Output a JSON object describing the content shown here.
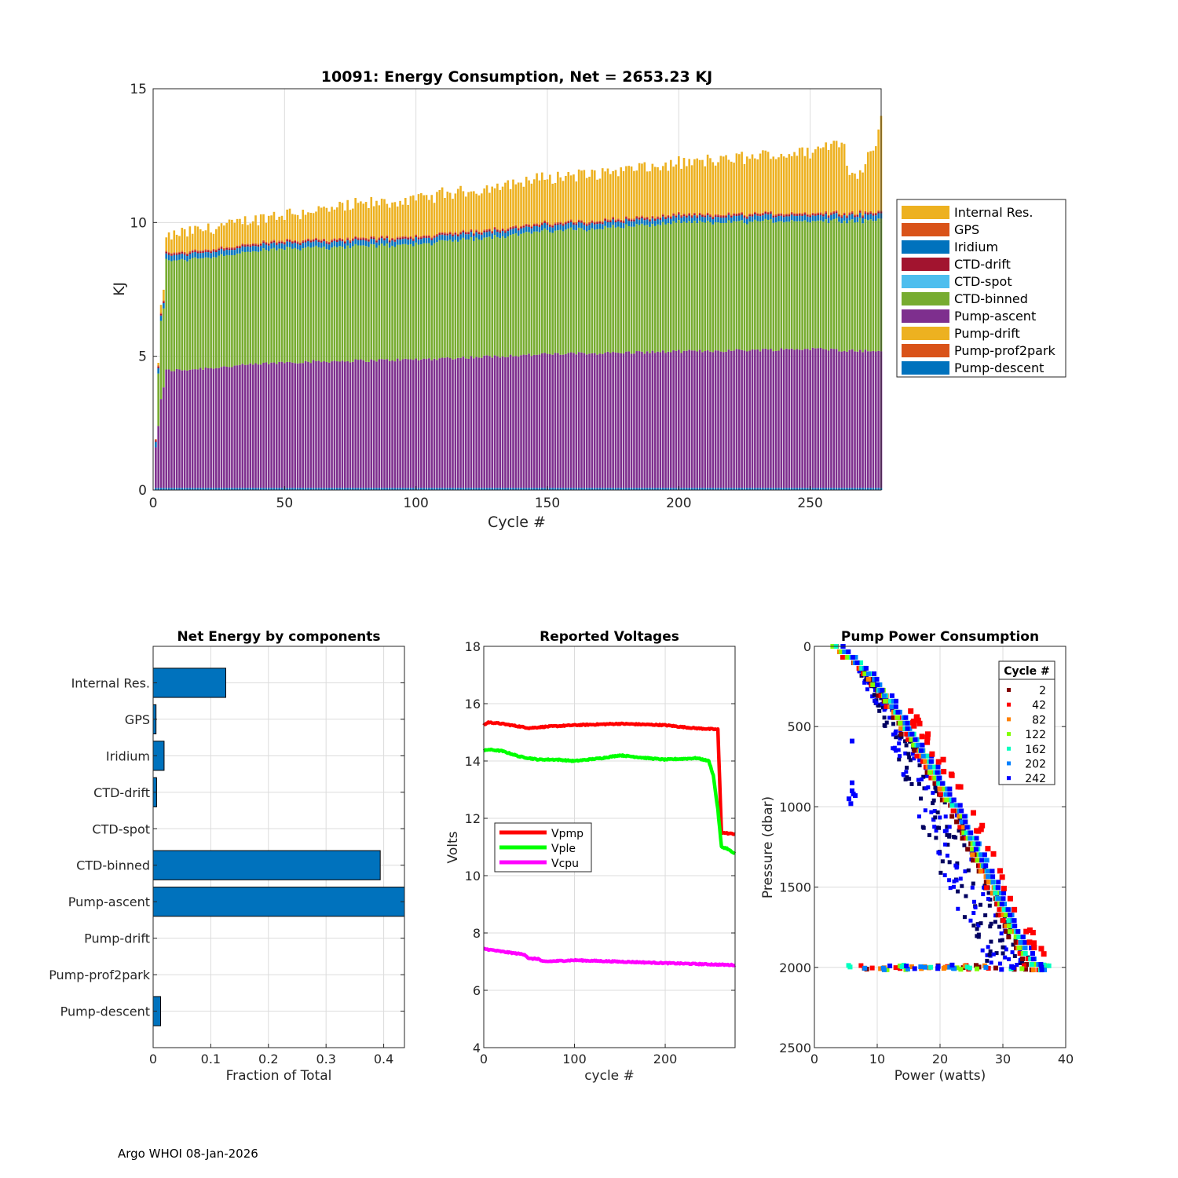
{
  "figure": {
    "footer": "Argo WHOI 08-Jan-2026"
  },
  "colors": {
    "Internal Res.": "#EDB120",
    "GPS": "#D95319",
    "Iridium": "#0072BD",
    "CTD-drift": "#A2142F",
    "CTD-spot": "#4DBEEE",
    "CTD-binned": "#77AC30",
    "Pump-ascent": "#7E2F8E",
    "Pump-drift": "#EDB120",
    "Pump-prof2park": "#D95319",
    "Pump-descent": "#0072BD"
  },
  "chart_data": [
    {
      "id": "energy",
      "type": "bar",
      "stacked": true,
      "title": "10091: Energy Consumption,  Net = 2653.23 KJ",
      "xlabel": "Cycle #",
      "ylabel": "KJ",
      "xlim": [
        0,
        277
      ],
      "ylim": [
        0,
        15
      ],
      "xticks": [
        0,
        50,
        100,
        150,
        200,
        250
      ],
      "yticks": [
        0,
        5,
        10,
        15
      ],
      "grid": true,
      "legend_position": "right",
      "legend": [
        "Internal Res.",
        "GPS",
        "Iridium",
        "CTD-drift",
        "CTD-spot",
        "CTD-binned",
        "Pump-ascent",
        "Pump-drift",
        "Pump-prof2park",
        "Pump-descent"
      ],
      "n_cycles": 277,
      "cycle_start": 1,
      "series_profile": {
        "Pump-descent": {
          "value_kj": 0.08
        },
        "Pump-ascent": {
          "anchors": [
            [
              1,
              1.5
            ],
            [
              2,
              2.3
            ],
            [
              3,
              3.3
            ],
            [
              4,
              3.8
            ],
            [
              5,
              4.4
            ],
            [
              10,
              4.4
            ],
            [
              50,
              4.7
            ],
            [
              100,
              4.8
            ],
            [
              150,
              5.0
            ],
            [
              200,
              5.1
            ],
            [
              250,
              5.2
            ],
            [
              277,
              5.1
            ]
          ]
        },
        "CTD-binned": {
          "anchors": [
            [
              1,
              0.0
            ],
            [
              2,
              1.9
            ],
            [
              3,
              2.9
            ],
            [
              4,
              2.9
            ],
            [
              5,
              4.1
            ],
            [
              6,
              4.1
            ],
            [
              50,
              4.25
            ],
            [
              100,
              4.3
            ],
            [
              150,
              4.6
            ],
            [
              200,
              4.8
            ],
            [
              250,
              4.8
            ],
            [
              277,
              4.9
            ]
          ]
        },
        "Iridium": {
          "value_kj": 0.2
        },
        "CTD-drift": {
          "value_kj": 0.06
        },
        "GPS": {
          "value_kj": 0.04
        },
        "Internal Res.": {
          "anchors": [
            [
              1,
              0.0
            ],
            [
              2,
              0.1
            ],
            [
              3,
              0.3
            ],
            [
              4,
              0.4
            ],
            [
              5,
              0.5
            ],
            [
              10,
              0.6
            ],
            [
              50,
              0.9
            ],
            [
              100,
              1.3
            ],
            [
              150,
              1.6
            ],
            [
              200,
              1.8
            ],
            [
              250,
              2.2
            ],
            [
              260,
              2.5
            ],
            [
              263,
              2.7
            ],
            [
              265,
              1.2
            ],
            [
              268,
              1.4
            ],
            [
              270,
              1.6
            ],
            [
              275,
              2.6
            ],
            [
              277,
              3.5
            ]
          ]
        }
      }
    },
    {
      "id": "components",
      "type": "barh",
      "title": "Net Energy by components",
      "xlabel": "Fraction of Total",
      "xlim": [
        0,
        0.436
      ],
      "xticks": [
        0,
        0.1,
        0.2,
        0.3,
        0.4
      ],
      "xticklabels": [
        "0",
        "0.1",
        "0.2",
        "0.3",
        "0.4"
      ],
      "categories": [
        "Internal Res.",
        "GPS",
        "Iridium",
        "CTD-drift",
        "CTD-spot",
        "CTD-binned",
        "Pump-ascent",
        "Pump-drift",
        "Pump-prof2park",
        "Pump-descent"
      ],
      "values": [
        0.126,
        0.005,
        0.019,
        0.006,
        0.0,
        0.394,
        0.44,
        0.0,
        0.0,
        0.013
      ],
      "bar_color": "#0072BD"
    },
    {
      "id": "voltages",
      "type": "line",
      "title": "Reported Voltages",
      "xlabel": "cycle #",
      "ylabel": "Volts",
      "xlim": [
        0,
        277
      ],
      "ylim": [
        4,
        18
      ],
      "xticks": [
        0,
        100,
        200
      ],
      "yticks": [
        4,
        6,
        8,
        10,
        12,
        14,
        16,
        18
      ],
      "legend_position": "inside-left",
      "series": [
        {
          "name": "Vpmp",
          "color": "#FF0000",
          "points": [
            [
              0,
              15.25
            ],
            [
              5,
              15.35
            ],
            [
              20,
              15.3
            ],
            [
              40,
              15.2
            ],
            [
              50,
              15.15
            ],
            [
              70,
              15.2
            ],
            [
              100,
              15.25
            ],
            [
              150,
              15.3
            ],
            [
              200,
              15.25
            ],
            [
              230,
              15.15
            ],
            [
              258,
              15.1
            ],
            [
              262,
              11.5
            ],
            [
              277,
              11.45
            ]
          ]
        },
        {
          "name": "Vple",
          "color": "#00FF00",
          "points": [
            [
              0,
              14.35
            ],
            [
              5,
              14.4
            ],
            [
              20,
              14.35
            ],
            [
              40,
              14.15
            ],
            [
              60,
              14.05
            ],
            [
              80,
              14.05
            ],
            [
              100,
              14.0
            ],
            [
              130,
              14.1
            ],
            [
              150,
              14.2
            ],
            [
              180,
              14.1
            ],
            [
              200,
              14.05
            ],
            [
              235,
              14.1
            ],
            [
              248,
              14.0
            ],
            [
              253,
              13.5
            ],
            [
              258,
              12.3
            ],
            [
              262,
              11.0
            ],
            [
              268,
              10.95
            ],
            [
              277,
              10.75
            ]
          ]
        },
        {
          "name": "Vcpu",
          "color": "#FF00FF",
          "points": [
            [
              0,
              7.45
            ],
            [
              20,
              7.35
            ],
            [
              45,
              7.25
            ],
            [
              50,
              7.1
            ],
            [
              60,
              7.1
            ],
            [
              65,
              7.0
            ],
            [
              100,
              7.05
            ],
            [
              150,
              7.0
            ],
            [
              200,
              6.95
            ],
            [
              277,
              6.88
            ]
          ]
        }
      ]
    },
    {
      "id": "pump",
      "type": "scatter",
      "title": "Pump Power Consumption",
      "xlabel": "Power (watts)",
      "ylabel": "Pressure (dbar)",
      "xlim": [
        0,
        40
      ],
      "ylim": [
        0,
        2500
      ],
      "y_reversed": true,
      "xticks": [
        0,
        10,
        20,
        30,
        40
      ],
      "yticks": [
        0,
        500,
        1000,
        1500,
        2000,
        2500
      ],
      "legend_title": "Cycle #",
      "legend_position": "top-right",
      "series": [
        {
          "name": "2",
          "color": "#800000"
        },
        {
          "name": "42",
          "color": "#FF0000"
        },
        {
          "name": "82",
          "color": "#FF8000"
        },
        {
          "name": "122",
          "color": "#80FF00"
        },
        {
          "name": "162",
          "color": "#00FFC0"
        },
        {
          "name": "202",
          "color": "#0080FF"
        },
        {
          "name": "242",
          "color": "#0000FF"
        }
      ],
      "main_curve": [
        [
          3.5,
          0
        ],
        [
          8,
          150
        ],
        [
          12,
          350
        ],
        [
          16,
          600
        ],
        [
          20,
          850
        ],
        [
          23,
          1050
        ],
        [
          26,
          1300
        ],
        [
          29,
          1550
        ],
        [
          32,
          1800
        ],
        [
          35,
          2000
        ],
        [
          37,
          2050
        ]
      ],
      "outlier_band": [
        [
          2.5,
          0
        ],
        [
          7,
          150
        ],
        [
          10,
          400
        ],
        [
          13,
          700
        ],
        [
          16,
          1000
        ],
        [
          19,
          1300
        ],
        [
          22,
          1600
        ],
        [
          26,
          1850
        ],
        [
          28,
          2000
        ]
      ],
      "shallow_outliers": [
        [
          5.5,
          950
        ],
        [
          6,
          900
        ],
        [
          6,
          850
        ],
        [
          6.5,
          930
        ],
        [
          6,
          590
        ],
        [
          5.8,
          980
        ],
        [
          6.2,
          920
        ]
      ],
      "bottom_row": {
        "pressure": 2000,
        "xmin": 5,
        "xmax": 38
      },
      "scatter_points_per_series": 60
    }
  ]
}
